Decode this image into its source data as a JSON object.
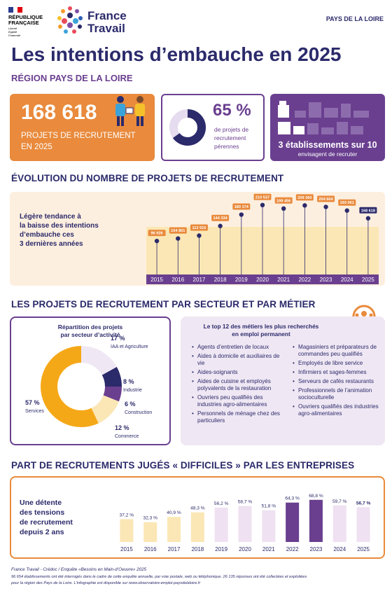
{
  "header": {
    "republic_line1": "RÉPUBLIQUE",
    "republic_line2": "FRANÇAISE",
    "motto_1": "Liberté",
    "motto_2": "Égalité",
    "motto_3": "Fraternité",
    "brand_line1": "France",
    "brand_line2": "Travail",
    "region_tag": "PAYS DE LA LOIRE"
  },
  "title": "Les intentions d’embauche en 2025",
  "subtitle": "RÉGION PAYS DE LA LOIRE",
  "kpi": {
    "projects_value": "168 618",
    "projects_label1": "PROJETS DE RECRUTEMENT",
    "projects_label2": "EN 2025",
    "perennial_value": "65 %",
    "perennial_fraction": 0.65,
    "perennial_label1": "de projets de",
    "perennial_label2": "recrutement",
    "perennial_label3": "pérennes",
    "establishments_value": "3 établissements sur 10",
    "establishments_label": "envisagent de recruter"
  },
  "evolution": {
    "title": "ÉVOLUTION DU NOMBRE DE PROJETS DE RECRUTEMENT",
    "comment_1": "Légère tendance à",
    "comment_2": "la baisse des intentions",
    "comment_3": "d’embauche ces",
    "comment_4": "3 dernières années"
  },
  "secteurs": {
    "title": "LES PROJETS DE RECRUTEMENT PAR SECTEUR ET PAR MÉTIER",
    "pie_title1": "Répartition des projets",
    "pie_title2": "par secteur d’activité",
    "metiers_title1": "Le top 12 des métiers les plus recherchés",
    "metiers_title2": "en emploi permanent",
    "metiers_left": [
      "Agents d’entretien de locaux",
      "Aides à domicile et auxiliaires de vie",
      "Aides-soignants",
      "Aides de cuisine et employés polyvalents de la restauration",
      "Ouvriers peu qualifiés des industries agro-alimentaires",
      "Personnels de ménage chez des particuliers"
    ],
    "metiers_right": [
      "Magasiniers et préparateurs de commandes peu qualifiés",
      "Employés de libre service",
      "Infirmiers et sages-femmes",
      "Serveurs de cafés restaurants",
      "Professionnels de l’animation socioculturelle",
      "Ouvriers qualifiés des industries agro-alimentaires"
    ]
  },
  "difficiles": {
    "title": "PART DE RECRUTEMENTS JUGÉS « DIFFICILES » PAR LES ENTREPRISES",
    "comment_1": "Une détente",
    "comment_2": "des tensions",
    "comment_3": "de recrutement",
    "comment_4": "depuis 2 ans"
  },
  "footer": {
    "source": "France Travail - Crédoc / Enquête «Besoins en Main-d’Oeuvre» 2025",
    "note1": "96 654 établissements ont été interrogés dans le cadre de cette enquête annuelle, par voie postale, web ou téléphonique. 26 135 réponses ont été collectées et exploitées",
    "note2": "pour la région des Pays de la Loire. L’infographie est disponible sur www.observatoire-emploi-paysdelaloire.fr"
  },
  "colors": {
    "navy": "#2b2a6b",
    "orange": "#e98a3c",
    "purple": "#6a3f8f",
    "light_purple": "#efe7f3",
    "light_yellow": "#fbe7b5",
    "yellow": "#f5a817"
  },
  "chart_data": [
    {
      "type": "line",
      "categories": [
        "2015",
        "2016",
        "2017",
        "2018",
        "2019",
        "2020",
        "2021",
        "2022",
        "2023",
        "2024",
        "2025"
      ],
      "values": [
        96926,
        104801,
        113915,
        144334,
        180174,
        210537,
        199456,
        209360,
        204664,
        193061,
        168618
      ],
      "value_labels": [
        "96 926",
        "104 801",
        "113 915",
        "144 334",
        "180 174",
        "210 537",
        "199 456",
        "209 360",
        "204 664",
        "193 061",
        "168 618"
      ]
    },
    {
      "type": "pie",
      "labels": [
        "IAA et Agriculture",
        "Industrie",
        "Construction",
        "Commerce",
        "Services"
      ],
      "values": [
        17,
        8,
        6,
        12,
        57
      ],
      "value_labels": [
        "17 %",
        "8 %",
        "6 %",
        "12 %",
        "57 %"
      ]
    },
    {
      "type": "bar",
      "categories": [
        "2015",
        "2016",
        "2017",
        "2018",
        "2019",
        "2020",
        "2021",
        "2022",
        "2023",
        "2024",
        "2025"
      ],
      "values": [
        37.2,
        32.3,
        40.9,
        48.3,
        56.2,
        58.7,
        51.8,
        64.3,
        68.8,
        59.7,
        56.7
      ],
      "value_labels": [
        "37,2 %",
        "32,3 %",
        "40,9 %",
        "48,3 %",
        "56,2 %",
        "58,7 %",
        "51,8 %",
        "64,3 %",
        "68,8 %",
        "59,7 %",
        "56,7 %"
      ]
    }
  ]
}
